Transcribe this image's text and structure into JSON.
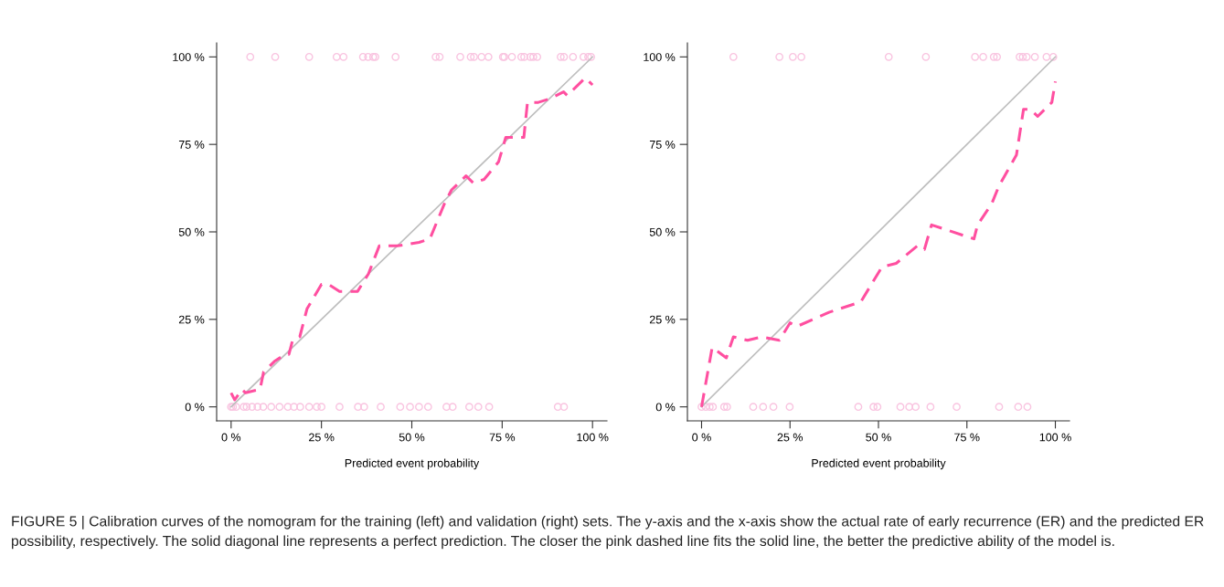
{
  "chart_data": [
    {
      "type": "line",
      "xlabel": "Predicted event probability",
      "xlim": [
        -4,
        104
      ],
      "ylim": [
        -4,
        104
      ],
      "xticks": [
        {
          "value": 0,
          "label": "0 %"
        },
        {
          "value": 25,
          "label": "25 %"
        },
        {
          "value": 50,
          "label": "50 %"
        },
        {
          "value": 75,
          "label": "75 %"
        },
        {
          "value": 100,
          "label": "100 %"
        }
      ],
      "yticks": [
        {
          "value": 0,
          "label": "0 %"
        },
        {
          "value": 25,
          "label": "25 %"
        },
        {
          "value": 50,
          "label": "50 %"
        },
        {
          "value": 75,
          "label": "75 %"
        },
        {
          "value": 100,
          "label": "100 %"
        }
      ],
      "grid": false,
      "series": [
        {
          "type": "scatter",
          "marker": "circle",
          "color": "#f9c4e0",
          "x": [
            5.3,
            12.2,
            21.6,
            29.2,
            31.1,
            36.5,
            37.9,
            39.3,
            39.9,
            45.5,
            56.6,
            57.7,
            63.4,
            66.3,
            67.2,
            69.3,
            71.2,
            75.2,
            75.6,
            77.7,
            80.3,
            81.1,
            82.8,
            83.6,
            84.7,
            91.2,
            92.1,
            94.6,
            97.5,
            98.8,
            99.6
          ],
          "values": [
            100,
            100,
            100,
            100,
            100,
            100,
            100,
            100,
            100,
            100,
            100,
            100,
            100,
            100,
            100,
            100,
            100,
            100,
            100,
            100,
            100,
            100,
            100,
            100,
            100,
            100,
            100,
            100,
            100,
            100,
            100
          ]
        },
        {
          "type": "scatter",
          "marker": "circle",
          "color": "#f9c4e0",
          "x": [
            0,
            0.5,
            1.4,
            3.5,
            4.3,
            5.8,
            7.3,
            8.9,
            11.1,
            13.4,
            15.7,
            17.4,
            19.1,
            21.6,
            23.7,
            25,
            30,
            35.1,
            36.8,
            41.4,
            46.8,
            49.5,
            52,
            54.5,
            59.6,
            61.3,
            65.9,
            68.4,
            71.4,
            90.4,
            92.1
          ],
          "values": [
            0,
            0,
            0,
            0,
            0,
            0,
            0,
            0,
            0,
            0,
            0,
            0,
            0,
            0,
            0,
            0,
            0,
            0,
            0,
            0,
            0,
            0,
            0,
            0,
            0,
            0,
            0,
            0,
            0,
            0,
            0
          ]
        },
        {
          "type": "line",
          "marker": "none",
          "line_style": "solid",
          "color": "#bebebe",
          "x": [
            0,
            100
          ],
          "values": [
            0,
            100
          ]
        },
        {
          "type": "line",
          "marker": "none",
          "line_style": "dashed",
          "color": "#ff4fa0",
          "x": [
            0,
            1,
            3,
            4,
            8,
            9,
            12,
            15,
            16,
            17,
            19,
            21,
            25,
            27,
            30,
            35,
            38,
            41,
            46,
            52,
            55,
            59,
            61,
            65,
            67,
            70,
            74,
            76,
            81,
            82,
            85,
            88,
            92,
            93,
            98,
            100
          ],
          "values": [
            4,
            2,
            5,
            4,
            5,
            10,
            13,
            15,
            15,
            19,
            20,
            28,
            35,
            35,
            33,
            33,
            38,
            46,
            46,
            47,
            48,
            58,
            62,
            66,
            64,
            65,
            70,
            77,
            77,
            87,
            87,
            88,
            90,
            89,
            94,
            92
          ]
        }
      ],
      "annotations": [
        "FIGURE 5 | Calibration curves of the nomogram for the training (left) and validation (right) sets. The y-axis and the x-axis show the actual rate of early recurrence (ER) and the predicted ER possibility, respectively. The solid diagonal line represents a perfect prediction. The closer the pink dashed line fits the solid line, the better the predictive ability of the model is."
      ]
    },
    {
      "type": "line",
      "xlabel": "Predicted event probability",
      "xlim": [
        -4,
        104
      ],
      "ylim": [
        -4,
        104
      ],
      "xticks": [
        {
          "value": 0,
          "label": "0 %"
        },
        {
          "value": 25,
          "label": "25 %"
        },
        {
          "value": 50,
          "label": "50 %"
        },
        {
          "value": 75,
          "label": "75 %"
        },
        {
          "value": 100,
          "label": "100 %"
        }
      ],
      "yticks": [
        {
          "value": 0,
          "label": "0 %"
        },
        {
          "value": 25,
          "label": "25 %"
        },
        {
          "value": 50,
          "label": "50 %"
        },
        {
          "value": 75,
          "label": "75 %"
        },
        {
          "value": 100,
          "label": "100 %"
        }
      ],
      "grid": false,
      "series": [
        {
          "type": "scatter",
          "marker": "circle",
          "color": "#f9c4e0",
          "x": [
            9,
            22,
            25.8,
            28.2,
            52.9,
            63.4,
            77.3,
            79.6,
            82.6,
            83.5,
            89.9,
            90.8,
            91.9,
            94.2,
            97.5,
            99.4
          ],
          "values": [
            100,
            100,
            100,
            100,
            100,
            100,
            100,
            100,
            100,
            100,
            100,
            100,
            100,
            100,
            100,
            100
          ]
        },
        {
          "type": "scatter",
          "marker": "circle",
          "color": "#f9c4e0",
          "x": [
            0,
            1.2,
            2.3,
            3.2,
            6.4,
            7.2,
            14.6,
            17.4,
            20.3,
            24.9,
            44.3,
            48.6,
            49.7,
            56.2,
            58.7,
            60.5,
            64.7,
            72.1,
            84.1,
            89.5,
            92.1
          ],
          "values": [
            0,
            0,
            0,
            0,
            0,
            0,
            0,
            0,
            0,
            0,
            0,
            0,
            0,
            0,
            0,
            0,
            0,
            0,
            0,
            0,
            0
          ]
        },
        {
          "type": "line",
          "marker": "none",
          "line_style": "solid",
          "color": "#bebebe",
          "x": [
            0,
            100
          ],
          "values": [
            0,
            100
          ]
        },
        {
          "type": "line",
          "marker": "none",
          "line_style": "dashed",
          "color": "#ff4fa0",
          "x": [
            0,
            3,
            7,
            9,
            13,
            17,
            22,
            25,
            27,
            36,
            45,
            51,
            55,
            61,
            63,
            65,
            77,
            78,
            82,
            84,
            89,
            91,
            93,
            95,
            99,
            100
          ],
          "values": [
            0,
            17,
            14,
            20,
            19,
            20,
            19,
            24,
            23,
            27,
            30,
            40,
            41,
            46,
            45,
            52,
            48,
            52,
            58,
            63,
            72,
            85,
            85,
            83,
            87,
            93
          ]
        }
      ]
    }
  ]
}
